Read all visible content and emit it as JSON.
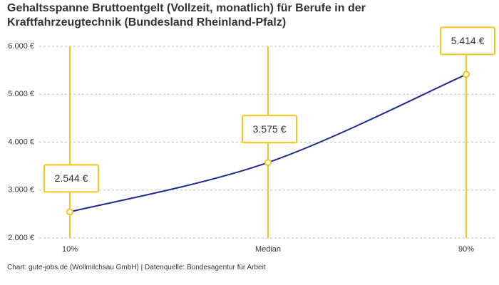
{
  "chart_data": {
    "type": "line",
    "title": "Gehaltsspanne Bruttoentgelt (Vollzeit, monatlich) für Berufe in der Kraftfahrzeugtechnik (Bundesland Rheinland-Pfalz)",
    "categories": [
      "10%",
      "Median",
      "90%"
    ],
    "values": [
      2544,
      3575,
      5414
    ],
    "value_labels": [
      "2.544 €",
      "3.575 €",
      "5.414 €"
    ],
    "color": "#1f2d8a",
    "marker_color": "#f5c518",
    "ylim": [
      2000,
      6000
    ],
    "yticks": [
      {
        "value": 2000,
        "label": "2.000 €"
      },
      {
        "value": 3000,
        "label": "3.000 €"
      },
      {
        "value": 4000,
        "label": "4.000 €"
      },
      {
        "value": 5000,
        "label": "5.000 €"
      },
      {
        "value": 6000,
        "label": "6.000 €"
      }
    ],
    "grid": true,
    "source": "Chart: gute-jobs.de (Wollmilchsau GmbH) | Datenquelle: Bundesagentur für Arbeit"
  }
}
